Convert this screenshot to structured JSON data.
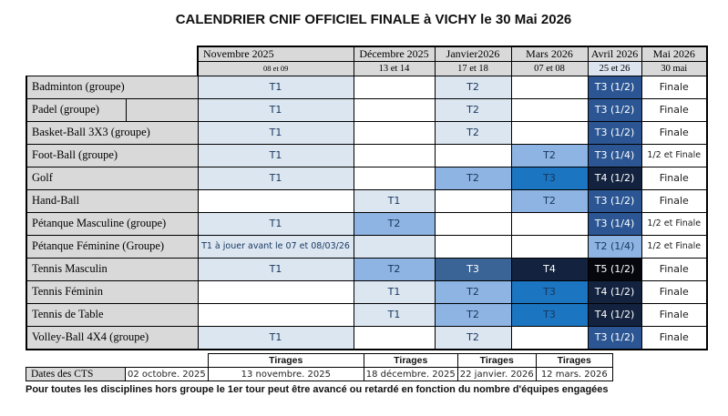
{
  "title": "CALENDRIER CNIF OFFICIEL FINALE à VICHY le 30 Mai 2026",
  "colors": {
    "white": "#FFFFFF",
    "light": "#DCE6F1",
    "medium": "#8DB4E2",
    "vivid": "#1B75C1",
    "steel": "#3A6496",
    "navy": "#2B5693",
    "dark": "#13233F",
    "black": "#05070C",
    "header_bg": "#D9D9D9",
    "avril_days_bg": "#DCE4EF"
  },
  "text_colors": {
    "white": "#1A1A1A",
    "light": "#17375D",
    "medium": "#17375D",
    "vivid": "#17375D",
    "steel": "#FFFFFF",
    "navy": "#FFFFFF",
    "dark": "#FFFFFF",
    "black": "#FFFFFF"
  },
  "calendar": {
    "columns": [
      {
        "month": "Novembre 2025",
        "days": "08 et 09"
      },
      {
        "month": "Décembre 2025",
        "days": "13 et 14"
      },
      {
        "month": "Janvier2026",
        "days": "17 et 18"
      },
      {
        "month": "Mars 2026",
        "days": "07 et 08"
      },
      {
        "month": "Avril 2026",
        "days": "25 et 26"
      },
      {
        "month": "Mai 2026",
        "days": "30 mai"
      }
    ],
    "rows": [
      {
        "label": "Badminton (groupe)",
        "cells": [
          {
            "t": "T1",
            "c": "light"
          },
          {
            "t": "",
            "c": "white"
          },
          {
            "t": "T2",
            "c": "light"
          },
          {
            "t": "",
            "c": "white"
          },
          {
            "t": "T3 (1/2)",
            "c": "navy"
          },
          {
            "t": "Finale",
            "c": "white"
          }
        ]
      },
      {
        "label": "Padel (groupe)",
        "split": true,
        "cells": [
          {
            "t": "T1",
            "c": "light"
          },
          {
            "t": "",
            "c": "white"
          },
          {
            "t": "T2",
            "c": "light"
          },
          {
            "t": "",
            "c": "white"
          },
          {
            "t": "T3 (1/2)",
            "c": "navy"
          },
          {
            "t": "Finale",
            "c": "white"
          }
        ]
      },
      {
        "label": "Basket-Ball 3X3 (groupe)",
        "cells": [
          {
            "t": "T1",
            "c": "light"
          },
          {
            "t": "",
            "c": "white"
          },
          {
            "t": "T2",
            "c": "light"
          },
          {
            "t": "",
            "c": "white"
          },
          {
            "t": "T3 (1/2)",
            "c": "navy"
          },
          {
            "t": "Finale",
            "c": "white"
          }
        ]
      },
      {
        "label": "Foot-Ball (groupe)",
        "cells": [
          {
            "t": "T1",
            "c": "light"
          },
          {
            "t": "",
            "c": "white"
          },
          {
            "t": "",
            "c": "white"
          },
          {
            "t": "T2",
            "c": "medium"
          },
          {
            "t": "T3 (1/4)",
            "c": "navy"
          },
          {
            "t": "1/2 et Finale",
            "c": "white",
            "small": true
          }
        ]
      },
      {
        "label": "Golf",
        "cells": [
          {
            "t": "T1",
            "c": "light"
          },
          {
            "t": "",
            "c": "white"
          },
          {
            "t": "T2",
            "c": "medium"
          },
          {
            "t": "T3",
            "c": "vivid"
          },
          {
            "t": "T4 (1/2)",
            "c": "dark"
          },
          {
            "t": "Finale",
            "c": "white"
          }
        ]
      },
      {
        "label": "Hand-Ball",
        "cells": [
          {
            "t": "",
            "c": "white"
          },
          {
            "t": "T1",
            "c": "light"
          },
          {
            "t": "",
            "c": "white"
          },
          {
            "t": "T2",
            "c": "medium"
          },
          {
            "t": "T3 (1/2)",
            "c": "navy"
          },
          {
            "t": "Finale",
            "c": "white"
          }
        ]
      },
      {
        "label": "Pétanque Masculine (groupe)",
        "cells": [
          {
            "t": "T1",
            "c": "light"
          },
          {
            "t": "T2",
            "c": "medium"
          },
          {
            "t": "",
            "c": "white"
          },
          {
            "t": "",
            "c": "white"
          },
          {
            "t": "T3 (1/4)",
            "c": "navy"
          },
          {
            "t": "1/2 et Finale",
            "c": "white",
            "small": true
          }
        ]
      },
      {
        "label": "Pétanque Féminine (Groupe)",
        "cells": [
          {
            "t": "T1 à jouer avant le 07 et 08/03/26",
            "c": "light",
            "small": true
          },
          {
            "t": "",
            "c": "light"
          },
          {
            "t": "",
            "c": "white"
          },
          {
            "t": "",
            "c": "white"
          },
          {
            "t": "T2 (1/4)",
            "c": "medium"
          },
          {
            "t": "1/2 et Finale",
            "c": "white",
            "small": true
          }
        ]
      },
      {
        "label": "Tennis Masculin",
        "cells": [
          {
            "t": "T1",
            "c": "light"
          },
          {
            "t": "T2",
            "c": "medium"
          },
          {
            "t": "T3",
            "c": "steel"
          },
          {
            "t": "T4",
            "c": "dark"
          },
          {
            "t": "T5 (1/2)",
            "c": "black"
          },
          {
            "t": "Finale",
            "c": "white"
          }
        ]
      },
      {
        "label": "Tennis Féminin",
        "cells": [
          {
            "t": "",
            "c": "white"
          },
          {
            "t": "T1",
            "c": "light"
          },
          {
            "t": "T2",
            "c": "medium"
          },
          {
            "t": "T3",
            "c": "vivid"
          },
          {
            "t": "T4 (1/2)",
            "c": "dark"
          },
          {
            "t": "Finale",
            "c": "white"
          }
        ]
      },
      {
        "label": "Tennis de Table",
        "cells": [
          {
            "t": "",
            "c": "white"
          },
          {
            "t": "T1",
            "c": "light"
          },
          {
            "t": "T2",
            "c": "medium"
          },
          {
            "t": "T3",
            "c": "vivid"
          },
          {
            "t": "T4 (1/2)",
            "c": "dark"
          },
          {
            "t": "Finale",
            "c": "white"
          }
        ]
      },
      {
        "label": "Volley-Ball 4X4 (groupe)",
        "cells": [
          {
            "t": "T1",
            "c": "light"
          },
          {
            "t": "",
            "c": "white"
          },
          {
            "t": "T2",
            "c": "light"
          },
          {
            "t": "",
            "c": "white"
          },
          {
            "t": "T3 (1/2)",
            "c": "navy"
          },
          {
            "t": "Finale",
            "c": "white"
          }
        ]
      }
    ]
  },
  "tirages": {
    "labels": [
      "Tirages",
      "Tirages",
      "Tirages",
      "Tirages"
    ],
    "cts_label": "Dates des CTS",
    "cts_date": "02 octobre. 2025",
    "dates": [
      "13 novembre. 2025",
      "18 décembre. 2025",
      "22 janvier. 2026",
      "12 mars. 2026"
    ]
  },
  "footnote": "Pour toutes les disciplines hors groupe le 1er tour peut être avancé ou retardé en fonction du nombre d'équipes engagées"
}
